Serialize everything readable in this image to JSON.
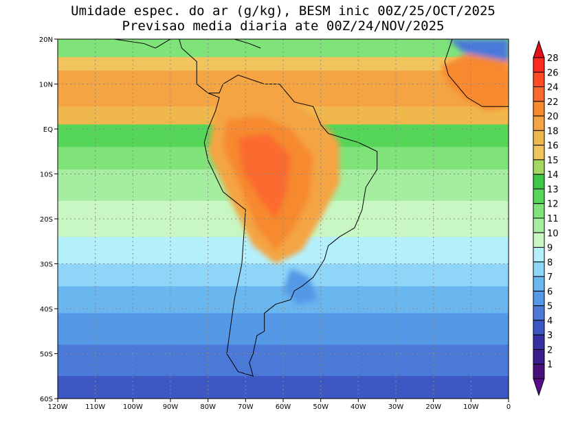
{
  "title_line1": "Umidade espec. do ar (g/kg), BESM inic 00Z/25/OCT/2025",
  "title_line2": "Previsao media diaria ate 00Z/24/NOV/2025",
  "lat_labels": [
    "20N",
    "10N",
    "EQ",
    "10S",
    "20S",
    "30S",
    "40S",
    "50S",
    "60S"
  ],
  "lat_values": [
    20,
    10,
    0,
    -10,
    -20,
    -30,
    -40,
    -50,
    -60
  ],
  "lon_labels": [
    "120W",
    "110W",
    "100W",
    "90W",
    "80W",
    "70W",
    "60W",
    "50W",
    "40W",
    "30W",
    "20W",
    "10W",
    "0"
  ],
  "lon_values": [
    -120,
    -110,
    -100,
    -90,
    -80,
    -70,
    -60,
    -50,
    -40,
    -30,
    -20,
    -10,
    0
  ],
  "colorbar": {
    "labels": [
      "28",
      "26",
      "24",
      "22",
      "20",
      "18",
      "16",
      "15",
      "14",
      "13",
      "12",
      "11",
      "10",
      "9",
      "8",
      "7",
      "6",
      "5",
      "4",
      "3",
      "2",
      "1"
    ],
    "colors": [
      "#ff2a1f",
      "#ff4a24",
      "#fb6a2d",
      "#f7892f",
      "#f4a442",
      "#f0b84c",
      "#f2c45e",
      "#a4d660",
      "#3cc844",
      "#56d659",
      "#7fe37a",
      "#a6ee9f",
      "#c8f7c3",
      "#b4f0fb",
      "#8fd5f8",
      "#6ab6ef",
      "#5598e6",
      "#4a79d8",
      "#3d58c2",
      "#3732a4",
      "#3b1d8c",
      "#4a0f78"
    ],
    "top_arrow_color": "#e0111a",
    "bottom_arrow_color": "#5a0a8c"
  },
  "map_bands": [
    {
      "lat_top": 20,
      "lat_bottom": 16,
      "color": "#7fe37a"
    },
    {
      "lat_top": 16,
      "lat_bottom": 13,
      "color": "#f2c45e"
    },
    {
      "lat_top": 13,
      "lat_bottom": 5,
      "color": "#f4a442"
    },
    {
      "lat_top": 5,
      "lat_bottom": 1,
      "color": "#f0b84c"
    },
    {
      "lat_top": 1,
      "lat_bottom": -4,
      "color": "#56d659"
    },
    {
      "lat_top": -4,
      "lat_bottom": -9,
      "color": "#7fe37a"
    },
    {
      "lat_top": -9,
      "lat_bottom": -16,
      "color": "#a6ee9f"
    },
    {
      "lat_top": -16,
      "lat_bottom": -24,
      "color": "#c8f7c3"
    },
    {
      "lat_top": -24,
      "lat_bottom": -30,
      "color": "#b4f0fb"
    },
    {
      "lat_top": -30,
      "lat_bottom": -35,
      "color": "#8fd5f8"
    },
    {
      "lat_top": -35,
      "lat_bottom": -41,
      "color": "#6ab6ef"
    },
    {
      "lat_top": -41,
      "lat_bottom": -48,
      "color": "#5598e6"
    },
    {
      "lat_top": -48,
      "lat_bottom": -55,
      "color": "#4a79d8"
    },
    {
      "lat_top": -55,
      "lat_bottom": -60,
      "color": "#3d58c2"
    }
  ],
  "high_humidity_colors": {
    "core": "#fb6a2d",
    "ring": "#f7892f",
    "outer": "#f4a442"
  },
  "africa_color": "#f7892f",
  "north_atlantic_dry_color": "#4a79d8"
}
